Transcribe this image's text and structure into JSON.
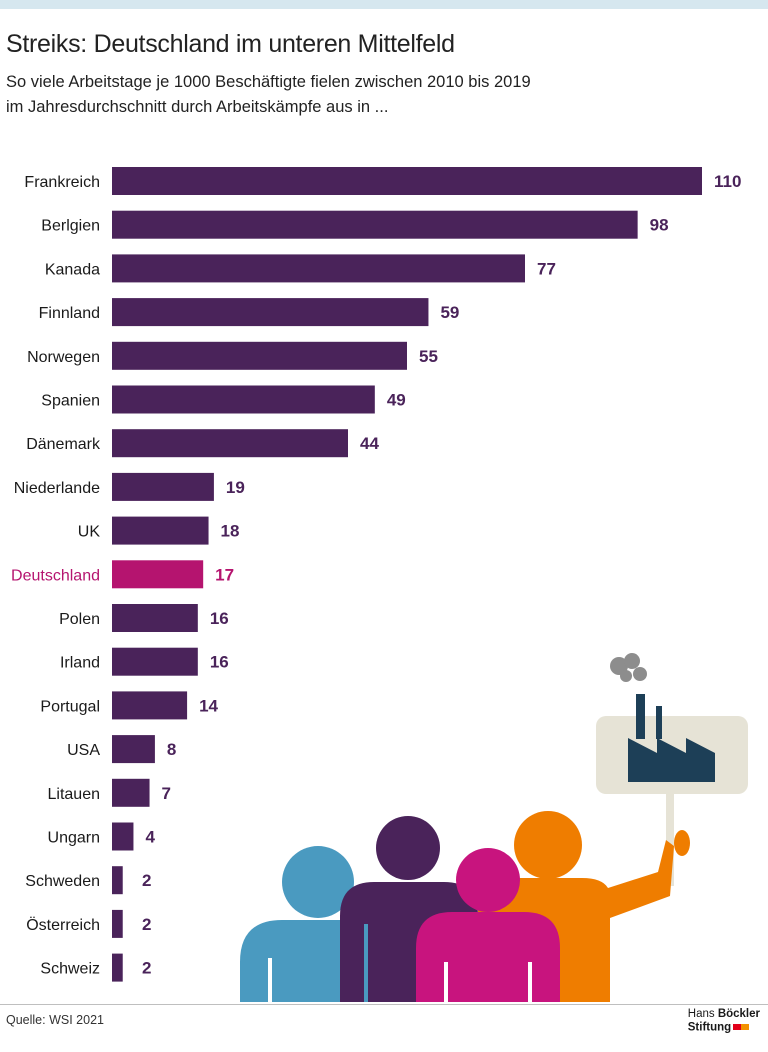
{
  "header": {
    "title": "Streiks: Deutschland im unteren Mittelfeld",
    "subtitle_line1": "So viele Arbeitstage je 1000 Beschäftigte fielen zwischen 2010 bis 2019",
    "subtitle_line2": "im Jahresdurchschnitt durch Arbeitskämpfe aus in ..."
  },
  "colors": {
    "bar": "#4a235a",
    "highlight": "#b5146f",
    "illustration_blue": "#4a9ac0",
    "illustration_purple": "#4a235a",
    "illustration_magenta": "#c8147e",
    "illustration_orange": "#ef7d00",
    "sign_bg": "#e6e3d6",
    "factory": "#1d3f57",
    "smoke": "#8d8d8d"
  },
  "chart_data": {
    "type": "bar",
    "orientation": "horizontal",
    "title": "Streiks: Deutschland im unteren Mittelfeld",
    "xlabel": "",
    "ylabel": "",
    "xlim": [
      0,
      110
    ],
    "grid": false,
    "highlight": "Deutschland",
    "categories": [
      "Frankreich",
      "Berlgien",
      "Kanada",
      "Finnland",
      "Norwegen",
      "Spanien",
      "Dänemark",
      "Niederlande",
      "UK",
      "Deutschland",
      "Polen",
      "Irland",
      "Portugal",
      "USA",
      "Litauen",
      "Ungarn",
      "Schweden",
      "Österreich",
      "Schweiz"
    ],
    "values": [
      110,
      98,
      77,
      59,
      55,
      49,
      44,
      19,
      18,
      17,
      16,
      16,
      14,
      8,
      7,
      4,
      2,
      2,
      2
    ]
  },
  "footer": {
    "source": "Quelle: WSI 2021",
    "logo_line1_regular": "Hans ",
    "logo_line1_bold": "Böckler",
    "logo_line2": "Stiftung"
  }
}
